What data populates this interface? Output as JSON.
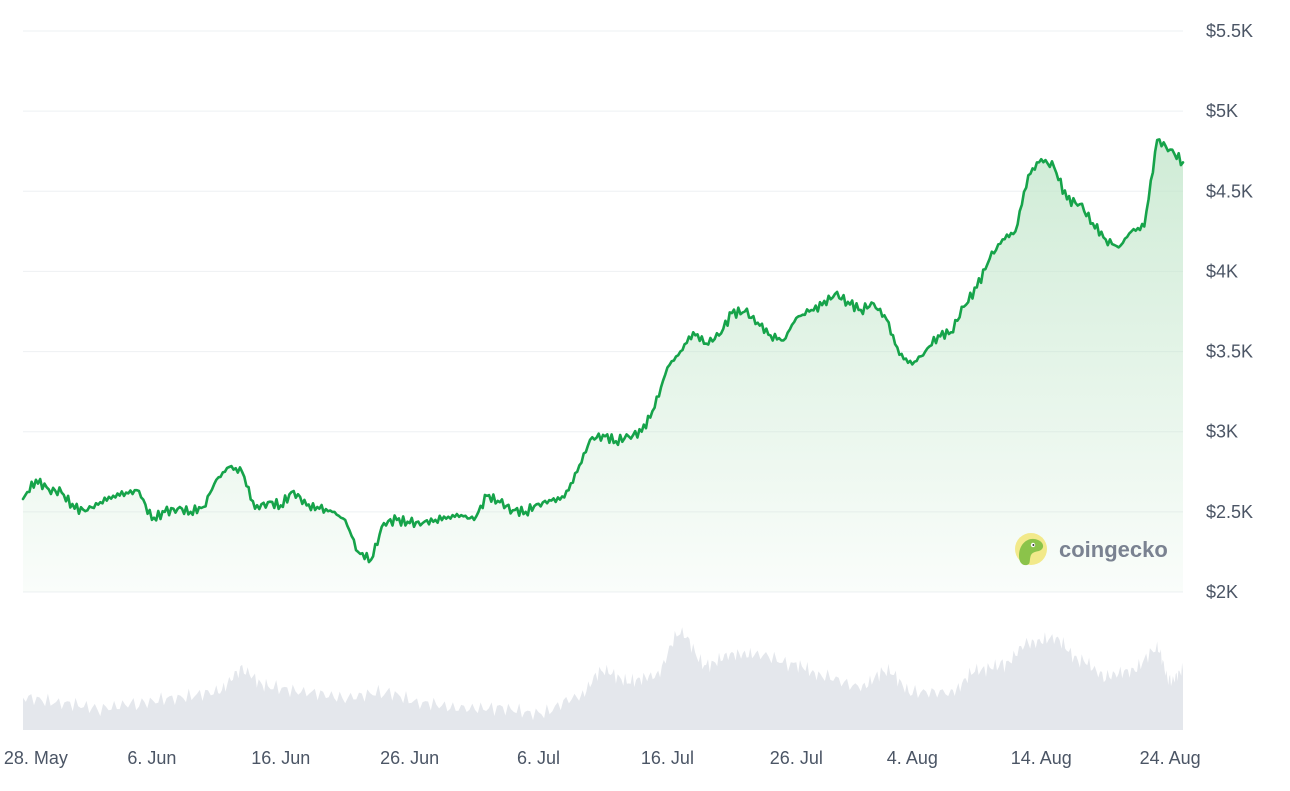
{
  "colors": {
    "price_line": "#16a34a",
    "area_fill": "#bfe5c8",
    "volume_fill": "#e4e7ec",
    "grid": "#eef0f3",
    "tick_text": "#4b5565",
    "watermark_text": "#7a8291",
    "logo_circle": "#f2e98a",
    "logo_body": "#8bc34a"
  },
  "watermark": {
    "text": "coingecko",
    "icon": "gecko-logo-icon"
  },
  "chart_data": {
    "type": "area",
    "title": "",
    "xlabel": "",
    "ylabel": "",
    "x_start": "2025-05-27",
    "x_end": "2025-08-25",
    "ylim": [
      2000,
      5500
    ],
    "y_ticks": [
      2000,
      2500,
      3000,
      3500,
      4000,
      4500,
      5000,
      5500
    ],
    "y_tick_labels": [
      "$2K",
      "$2.5K",
      "$3K",
      "$3.5K",
      "$4K",
      "$4.5K",
      "$5K",
      "$5.5K"
    ],
    "y_axis_position": "right",
    "x_tick_labels": [
      "28. May",
      "6. Jun",
      "16. Jun",
      "26. Jun",
      "6. Jul",
      "16. Jul",
      "26. Jul",
      "4. Aug",
      "14. Aug",
      "24. Aug"
    ],
    "x_tick_dates": [
      "2025-05-28",
      "2025-06-06",
      "2025-06-16",
      "2025-06-26",
      "2025-07-06",
      "2025-07-16",
      "2025-07-26",
      "2025-08-04",
      "2025-08-14",
      "2025-08-24"
    ],
    "grid": true,
    "legend": "none",
    "series": [
      {
        "x": [
          "2025-05-27",
          "2025-05-28",
          "2025-05-29",
          "2025-05-30",
          "2025-05-31",
          "2025-06-01",
          "2025-06-02",
          "2025-06-03",
          "2025-06-04",
          "2025-06-05",
          "2025-06-06",
          "2025-06-07",
          "2025-06-08",
          "2025-06-09",
          "2025-06-10",
          "2025-06-11",
          "2025-06-12",
          "2025-06-13",
          "2025-06-14",
          "2025-06-15",
          "2025-06-16",
          "2025-06-17",
          "2025-06-18",
          "2025-06-19",
          "2025-06-20",
          "2025-06-21",
          "2025-06-22",
          "2025-06-23",
          "2025-06-24",
          "2025-06-25",
          "2025-06-26",
          "2025-06-27",
          "2025-06-28",
          "2025-06-29",
          "2025-06-30",
          "2025-07-01",
          "2025-07-02",
          "2025-07-03",
          "2025-07-04",
          "2025-07-05",
          "2025-07-06",
          "2025-07-07",
          "2025-07-08",
          "2025-07-09",
          "2025-07-10",
          "2025-07-11",
          "2025-07-12",
          "2025-07-13",
          "2025-07-14",
          "2025-07-15",
          "2025-07-16",
          "2025-07-17",
          "2025-07-18",
          "2025-07-19",
          "2025-07-20",
          "2025-07-21",
          "2025-07-22",
          "2025-07-23",
          "2025-07-24",
          "2025-07-25",
          "2025-07-26",
          "2025-07-27",
          "2025-07-28",
          "2025-07-29",
          "2025-07-30",
          "2025-07-31",
          "2025-08-01",
          "2025-08-02",
          "2025-08-03",
          "2025-08-04",
          "2025-08-05",
          "2025-08-06",
          "2025-08-07",
          "2025-08-08",
          "2025-08-09",
          "2025-08-10",
          "2025-08-11",
          "2025-08-12",
          "2025-08-13",
          "2025-08-14",
          "2025-08-15",
          "2025-08-16",
          "2025-08-17",
          "2025-08-18",
          "2025-08-19",
          "2025-08-20",
          "2025-08-21",
          "2025-08-22",
          "2025-08-23",
          "2025-08-24",
          "2025-08-25"
        ],
        "y": [
          2580,
          2700,
          2640,
          2620,
          2520,
          2510,
          2560,
          2600,
          2620,
          2630,
          2450,
          2500,
          2520,
          2500,
          2530,
          2700,
          2780,
          2750,
          2520,
          2560,
          2540,
          2630,
          2540,
          2520,
          2500,
          2450,
          2250,
          2200,
          2430,
          2450,
          2430,
          2430,
          2450,
          2470,
          2480,
          2450,
          2600,
          2560,
          2510,
          2500,
          2550,
          2570,
          2590,
          2750,
          2950,
          2980,
          2940,
          2970,
          3000,
          3150,
          3400,
          3500,
          3620,
          3550,
          3600,
          3740,
          3750,
          3680,
          3600,
          3570,
          3710,
          3750,
          3790,
          3860,
          3810,
          3760,
          3800,
          3700,
          3480,
          3420,
          3500,
          3600,
          3620,
          3780,
          3900,
          4080,
          4200,
          4250,
          4600,
          4700,
          4650,
          4450,
          4420,
          4300,
          4200,
          4150,
          4250,
          4280,
          4820,
          4760,
          4680
        ]
      }
    ],
    "volume": {
      "x": [
        "2025-05-27",
        "2025-05-30",
        "2025-06-02",
        "2025-06-05",
        "2025-06-08",
        "2025-06-11",
        "2025-06-13",
        "2025-06-15",
        "2025-06-18",
        "2025-06-21",
        "2025-06-24",
        "2025-06-27",
        "2025-06-30",
        "2025-07-03",
        "2025-07-06",
        "2025-07-09",
        "2025-07-11",
        "2025-07-13",
        "2025-07-15",
        "2025-07-17",
        "2025-07-19",
        "2025-07-21",
        "2025-07-23",
        "2025-07-26",
        "2025-07-28",
        "2025-07-31",
        "2025-08-02",
        "2025-08-04",
        "2025-08-07",
        "2025-08-09",
        "2025-08-11",
        "2025-08-13",
        "2025-08-15",
        "2025-08-17",
        "2025-08-19",
        "2025-08-21",
        "2025-08-23",
        "2025-08-24",
        "2025-08-25"
      ],
      "values": [
        0.3,
        0.25,
        0.2,
        0.25,
        0.3,
        0.35,
        0.55,
        0.4,
        0.35,
        0.3,
        0.35,
        0.25,
        0.2,
        0.2,
        0.15,
        0.3,
        0.55,
        0.45,
        0.5,
        0.9,
        0.6,
        0.7,
        0.7,
        0.6,
        0.5,
        0.4,
        0.55,
        0.35,
        0.35,
        0.55,
        0.6,
        0.8,
        0.85,
        0.65,
        0.5,
        0.55,
        0.75,
        0.45,
        0.55
      ]
    }
  }
}
